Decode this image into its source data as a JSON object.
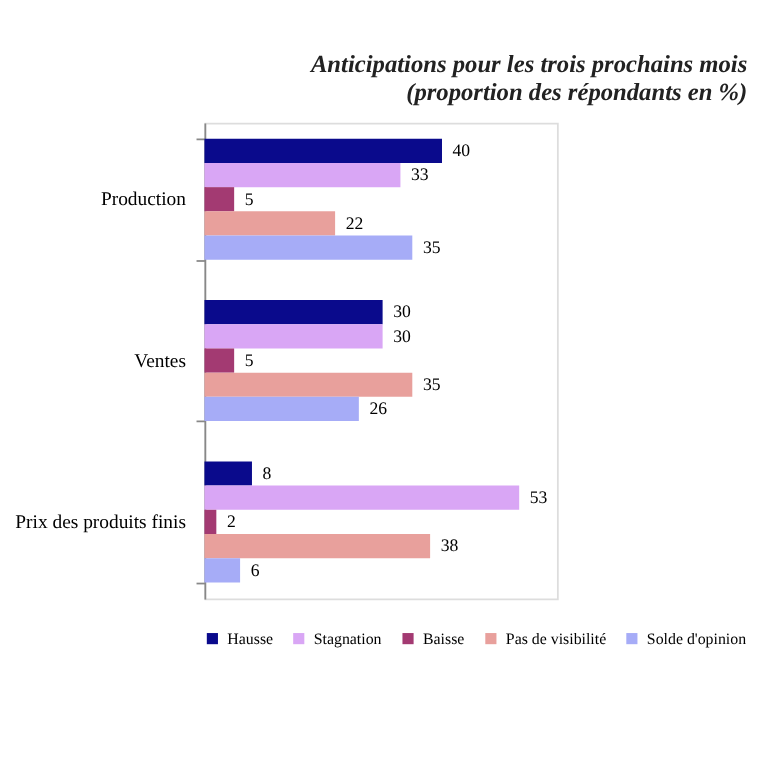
{
  "chart_data": {
    "type": "bar",
    "orientation": "horizontal",
    "title": [
      "Anticipations pour les trois prochains mois",
      "(proportion des répondants en %)"
    ],
    "categories": [
      "Production",
      "Ventes",
      "Prix des produits finis"
    ],
    "series": [
      {
        "name": "Hausse",
        "color": "#0a0a8c",
        "values": [
          40,
          30,
          8
        ]
      },
      {
        "name": "Stagnation",
        "color": "#d9a6f5",
        "values": [
          33,
          30,
          53
        ]
      },
      {
        "name": "Baisse",
        "color": "#a33a72",
        "values": [
          5,
          5,
          2
        ]
      },
      {
        "name": "Pas de visibilité",
        "color": "#e8a09c",
        "values": [
          22,
          35,
          38
        ]
      },
      {
        "name": "Solde d'opinion",
        "color": "#a6acf7",
        "values": [
          35,
          26,
          6
        ]
      }
    ],
    "data_labels": true,
    "grid": false,
    "legend": "bottom",
    "tick_labels": "y"
  }
}
